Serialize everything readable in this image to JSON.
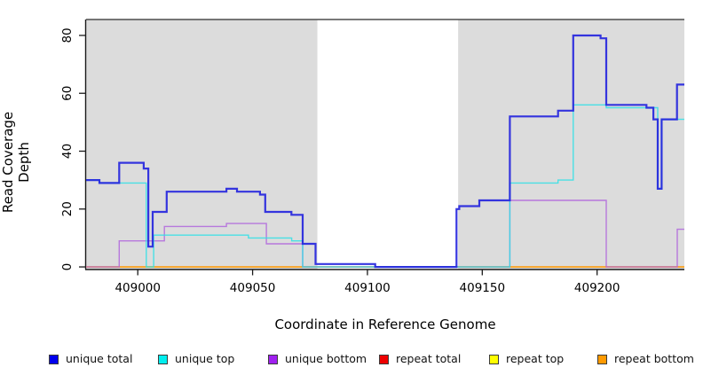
{
  "chart_data": {
    "type": "line",
    "subtype": "step-after-coverage",
    "title": "",
    "xlabel": "Coordinate in Reference Genome",
    "ylabel": "Read Coverage Depth",
    "xlim": [
      408977.5,
      409238.0
    ],
    "ylim": [
      -0.9,
      85.5
    ],
    "x_ticks": [
      409000,
      409050,
      409100,
      409150,
      409200
    ],
    "y_ticks": [
      0,
      20,
      40,
      60,
      80
    ],
    "grid": false,
    "legend_position": "bottom",
    "background_color": "#ffffff",
    "shaded_regions": [
      {
        "from": 408977.5,
        "to": 409078.2,
        "color": "#dcdcdc"
      },
      {
        "from": 409139.5,
        "to": 409238.0,
        "color": "#dcdcdc"
      }
    ],
    "series": [
      {
        "name": "repeat total",
        "color": "#e02020",
        "width": 1.4,
        "opacity": 1,
        "steps": [
          [
            408977.5,
            0
          ],
          [
            409238.0,
            0
          ]
        ]
      },
      {
        "name": "repeat top",
        "color": "#f0e800",
        "width": 1.4,
        "opacity": 1,
        "steps": [
          [
            408977.5,
            0
          ],
          [
            409238.0,
            0
          ]
        ]
      },
      {
        "name": "repeat bottom",
        "color": "#ff9f1a",
        "width": 1.4,
        "opacity": 1,
        "steps": [
          [
            408977.5,
            0
          ],
          [
            409238.0,
            0
          ]
        ]
      },
      {
        "name": "unique bottom",
        "color": "#b066dd",
        "width": 1.4,
        "opacity": 0.85,
        "steps": [
          [
            408977.5,
            0
          ],
          [
            408991.9,
            9
          ],
          [
            409011.6,
            14
          ],
          [
            409038.6,
            15
          ],
          [
            409056.0,
            8
          ],
          [
            409071.8,
            0
          ],
          [
            409162.0,
            23
          ],
          [
            409204.0,
            0
          ],
          [
            409234.9,
            13
          ],
          [
            409238.0,
            13
          ]
        ]
      },
      {
        "name": "unique top",
        "color": "#2fe0e6",
        "width": 1.4,
        "opacity": 0.85,
        "steps": [
          [
            408977.5,
            30
          ],
          [
            408983.3,
            29
          ],
          [
            409003.7,
            0
          ],
          [
            409006.9,
            11
          ],
          [
            409048.2,
            10
          ],
          [
            409067.0,
            9
          ],
          [
            409071.8,
            0
          ],
          [
            409162.0,
            29
          ],
          [
            409183.0,
            30
          ],
          [
            409189.6,
            56
          ],
          [
            409204.0,
            55
          ],
          [
            409226.4,
            27
          ],
          [
            409228.1,
            51
          ],
          [
            409238.0,
            51
          ]
        ]
      },
      {
        "name": "unique total",
        "color": "#2525dd",
        "width": 2.2,
        "opacity": 0.92,
        "steps": [
          [
            408977.5,
            30
          ],
          [
            408983.3,
            29
          ],
          [
            408991.9,
            36
          ],
          [
            409002.6,
            34
          ],
          [
            409004.6,
            7
          ],
          [
            409006.5,
            19
          ],
          [
            409012.6,
            26
          ],
          [
            409038.6,
            27
          ],
          [
            409043.2,
            26
          ],
          [
            409053.2,
            25
          ],
          [
            409055.5,
            19
          ],
          [
            409066.9,
            18
          ],
          [
            409071.8,
            8
          ],
          [
            409077.4,
            1
          ],
          [
            409103.4,
            0
          ],
          [
            409138.8,
            20
          ],
          [
            409140.0,
            21
          ],
          [
            409148.7,
            23
          ],
          [
            409162.0,
            52
          ],
          [
            409183.0,
            54
          ],
          [
            409189.6,
            80
          ],
          [
            409201.5,
            79
          ],
          [
            409204.0,
            56
          ],
          [
            409221.5,
            55
          ],
          [
            409224.5,
            51
          ],
          [
            409226.4,
            27
          ],
          [
            409228.1,
            51
          ],
          [
            409234.8,
            63
          ],
          [
            409238.0,
            63
          ]
        ]
      }
    ],
    "axis_color": "#1a1a1a",
    "top_border_color": "#4d4d4d"
  },
  "legend": {
    "items": [
      {
        "label": "unique total",
        "color": "#0000ee"
      },
      {
        "label": "unique top",
        "color": "#00eeee"
      },
      {
        "label": "unique bottom",
        "color": "#a020f0"
      },
      {
        "label": "repeat total",
        "color": "#ee0000"
      },
      {
        "label": "repeat top",
        "color": "#ffff00"
      },
      {
        "label": "repeat bottom",
        "color": "#ff9a00"
      }
    ]
  }
}
